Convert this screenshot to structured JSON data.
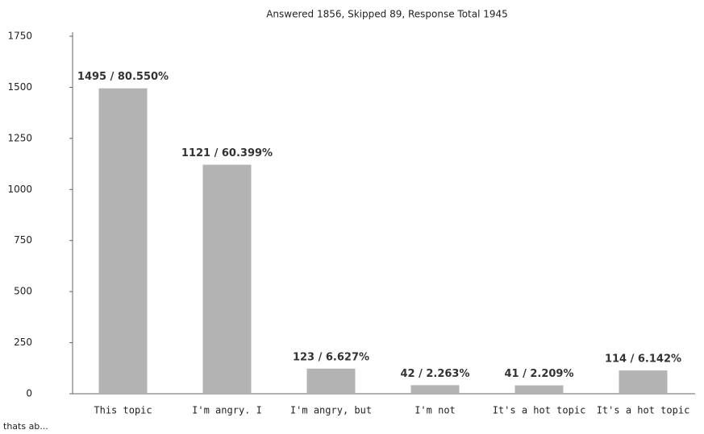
{
  "chart_data": {
    "type": "bar",
    "title": "Answered 1856, Skipped 89, Response Total 1945",
    "categories": [
      "This topic",
      "I'm angry. I",
      "I'm angry, but",
      "I'm not",
      "It's a hot topic",
      "It's a hot topic"
    ],
    "values": [
      1495,
      1121,
      123,
      42,
      41,
      114
    ],
    "value_labels": [
      "1495 / 80.550%",
      "1121 / 60.399%",
      "123 / 6.627%",
      "42 / 2.263%",
      "41 / 2.209%",
      "114 / 6.142%"
    ],
    "color": "#b3b3b3",
    "ylim": [
      0,
      1750
    ],
    "yticks": [
      0,
      250,
      500,
      750,
      1000,
      1250,
      1500,
      1750
    ],
    "footnote": "thats ab..."
  }
}
